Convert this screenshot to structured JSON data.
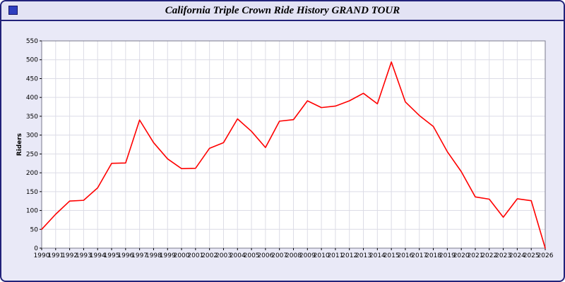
{
  "window": {
    "title": "California Triple Crown Ride History GRAND TOUR",
    "title_icon": "blue-square-icon"
  },
  "colors": {
    "window_background": "#e9e9f7",
    "window_border": "#22227a",
    "titlebar_background": "#e3e3f4",
    "title_icon_fill": "#2f3fbf",
    "plot_background": "#ffffff",
    "grid": "#dcdce6",
    "plot_frame": "#7a7a8c",
    "axis_text": "#000000",
    "line": "#ff0000"
  },
  "chart_data": {
    "type": "line",
    "title": "California Triple Crown Ride History GRAND TOUR",
    "xlabel": "",
    "ylabel": "Riders",
    "ylim": [
      0,
      550
    ],
    "ytick_step": 50,
    "yticks": [
      0,
      50,
      100,
      150,
      200,
      250,
      300,
      350,
      400,
      450,
      500,
      550
    ],
    "grid": true,
    "legend": "none",
    "line_color": "#ff0000",
    "x": [
      1990,
      1991,
      1992,
      1993,
      1994,
      1995,
      1996,
      1997,
      1998,
      1999,
      2000,
      2001,
      2002,
      2003,
      2004,
      2005,
      2006,
      2007,
      2008,
      2009,
      2010,
      2011,
      2012,
      2013,
      2014,
      2015,
      2016,
      2017,
      2018,
      2019,
      2020,
      2021,
      2022,
      2023,
      2024,
      2025,
      2026
    ],
    "values": [
      50,
      90,
      125,
      127,
      160,
      225,
      226,
      340,
      280,
      237,
      211,
      212,
      265,
      280,
      343,
      310,
      267,
      337,
      341,
      391,
      373,
      377,
      391,
      411,
      383,
      494,
      388,
      352,
      323,
      256,
      203,
      136,
      130,
      82,
      131,
      126,
      0
    ]
  }
}
